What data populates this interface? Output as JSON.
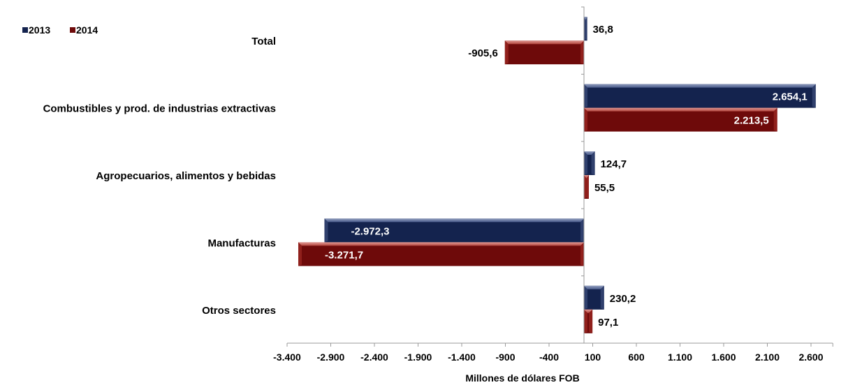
{
  "chart_data": {
    "type": "bar",
    "orientation": "horizontal",
    "categories": [
      "Total",
      "Combustibles y prod. de industrias extractivas",
      "Agropecuarios, alimentos y bebidas",
      "Manufacturas",
      "Otros sectores"
    ],
    "series": [
      {
        "name": "2013",
        "color": "#14234e",
        "values": [
          36.8,
          2654.1,
          124.7,
          -2972.3,
          230.2
        ],
        "labels": [
          "36,8",
          "2.654,1",
          "124,7",
          "-2.972,3",
          "230,2"
        ]
      },
      {
        "name": "2014",
        "color": "#6e0a0a",
        "values": [
          -905.6,
          2213.5,
          55.5,
          -3271.7,
          97.1
        ],
        "labels": [
          "-905,6",
          "2.213,5",
          "55,5",
          "-3.271,7",
          "97,1"
        ]
      }
    ],
    "x_ticks": [
      -3400,
      -2900,
      -2400,
      -1900,
      -1400,
      -900,
      -400,
      100,
      600,
      1100,
      1600,
      2100,
      2600
    ],
    "x_tick_labels": [
      "-3.400",
      "-2.900",
      "-2.400",
      "-1.900",
      "-1.400",
      "-900",
      "-400",
      "100",
      "600",
      "1.100",
      "1.600",
      "2.100",
      "2.600"
    ],
    "xlim": [
      -3400,
      2850
    ],
    "xlabel": "Millones de dólares FOB",
    "ylabel": "",
    "title": "",
    "legend": {
      "position": "top-left",
      "entries": [
        "2013",
        "2014"
      ]
    },
    "grid": false
  }
}
